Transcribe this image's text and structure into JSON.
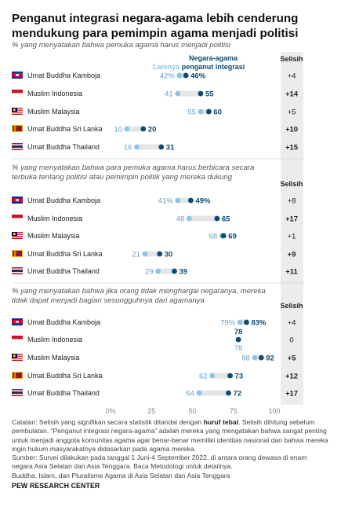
{
  "title": "Penganut integrasi negara-agama lebih cenderung mendukung para pemimpin agama menjadi politisi",
  "legend": {
    "other": "Lainnya",
    "integration": "Negara-agama penganut integrasi"
  },
  "diff_header": "Selisih",
  "colors": {
    "integration": "#0d4a73",
    "other": "#8fc5e4",
    "bar": "#e3e5e7",
    "diff_bg": "#ececec",
    "label": "#6a9fc4"
  },
  "flags": [
    "cambodia",
    "indonesia",
    "malaysia",
    "sri-lanka",
    "thailand"
  ],
  "x_ticks": [
    "0%",
    "25",
    "50",
    "75",
    "100"
  ],
  "chart_data": [
    {
      "type": "dot",
      "title": "% yang menyatakan bahwa pemuka agama harus menjadi politisi",
      "categories": [
        "Umat Buddha Kamboja",
        "Muslim Indonesia",
        "Muslim Malaysia",
        "Umat Buddha Sri Lanka",
        "Umat Buddha Thailand"
      ],
      "series": [
        {
          "name": "Lainnya",
          "values": [
            42,
            41,
            55,
            10,
            16
          ],
          "labels": [
            "42%",
            "41",
            "55",
            "10",
            "16"
          ]
        },
        {
          "name": "Negara-agama penganut integrasi",
          "values": [
            46,
            55,
            60,
            20,
            31
          ],
          "labels": [
            "46%",
            "55",
            "60",
            "20",
            "31"
          ]
        }
      ],
      "diff": [
        "+4",
        "+14",
        "+5",
        "+10",
        "+15"
      ],
      "significant": [
        false,
        true,
        false,
        true,
        true
      ],
      "xlim": [
        0,
        100
      ]
    },
    {
      "type": "dot",
      "title": "% yang menyatakan bahwa para pemuka agama harus berbicara secara terbuka tentang politisi atau pemimpin politik yang mereka dukung",
      "categories": [
        "Umat Buddha Kamboja",
        "Muslim Indonesia",
        "Muslim Malaysia",
        "Umat Buddha Sri Lanka",
        "Umat Buddha Thailand"
      ],
      "series": [
        {
          "name": "Lainnya",
          "values": [
            41,
            48,
            68,
            21,
            29
          ],
          "labels": [
            "41%",
            "48",
            "68",
            "21",
            "29"
          ]
        },
        {
          "name": "Negara-agama penganut integrasi",
          "values": [
            49,
            65,
            69,
            30,
            39
          ],
          "labels": [
            "49%",
            "65",
            "69",
            "30",
            "39"
          ]
        }
      ],
      "diff": [
        "+8",
        "+17",
        "+1",
        "+9",
        "+11"
      ],
      "significant": [
        false,
        true,
        false,
        true,
        true
      ],
      "xlim": [
        0,
        100
      ]
    },
    {
      "type": "dot",
      "title": "% yang menyatakan bahwa jika orang tidak menghargai negaranya, mereka tidak dapat menjadi bagian sesungguhnya dari agamanya",
      "categories": [
        "Umat Buddha Kamboja",
        "Muslim Indonesia",
        "Muslim Malaysia",
        "Umat Buddha Sri Lanka",
        "Umat Buddha Thailand"
      ],
      "series": [
        {
          "name": "Lainnya",
          "values": [
            79,
            78,
            88,
            62,
            54
          ],
          "labels": [
            "79%",
            "78",
            "88",
            "62",
            "54"
          ]
        },
        {
          "name": "Negara-agama penganut integrasi",
          "values": [
            83,
            78,
            92,
            73,
            72
          ],
          "labels": [
            "83%",
            "78",
            "92",
            "73",
            "72"
          ]
        }
      ],
      "diff": [
        "+4",
        "0",
        "+5",
        "+12",
        "+17"
      ],
      "significant": [
        false,
        false,
        true,
        true,
        true
      ],
      "xlim": [
        0,
        100
      ]
    }
  ],
  "notes": {
    "note_a": "Catatan: Selisih yang signifikan secara statistik ditandai dengan ",
    "note_bold": "huruf tebal",
    "note_b": ". Selisih dihitung sebelum pembulatan. “Penganut integrasi negara-agama” adalah mereka yang mengatakan bahwa sangat penting untuk menjadi anggota komunitas agama agar benar-benar memiliki identitas nasional dan bahwa mereka ingin hukum masyarakatnya didasarkan pada agama mereka.",
    "source": "Sumber: Survei dilakukan pada tanggal 1 Juni-4 September 2022, di antara orang dewasa di enam negara Asia Selatan dan Asia Tenggara. Baca Metodologi untuk detailnya.",
    "report": "Buddha, Islam, dan Pluralisme Agama di Asia Selatan dan Asia Tenggara"
  },
  "footer": "PEW RESEARCH CENTER"
}
